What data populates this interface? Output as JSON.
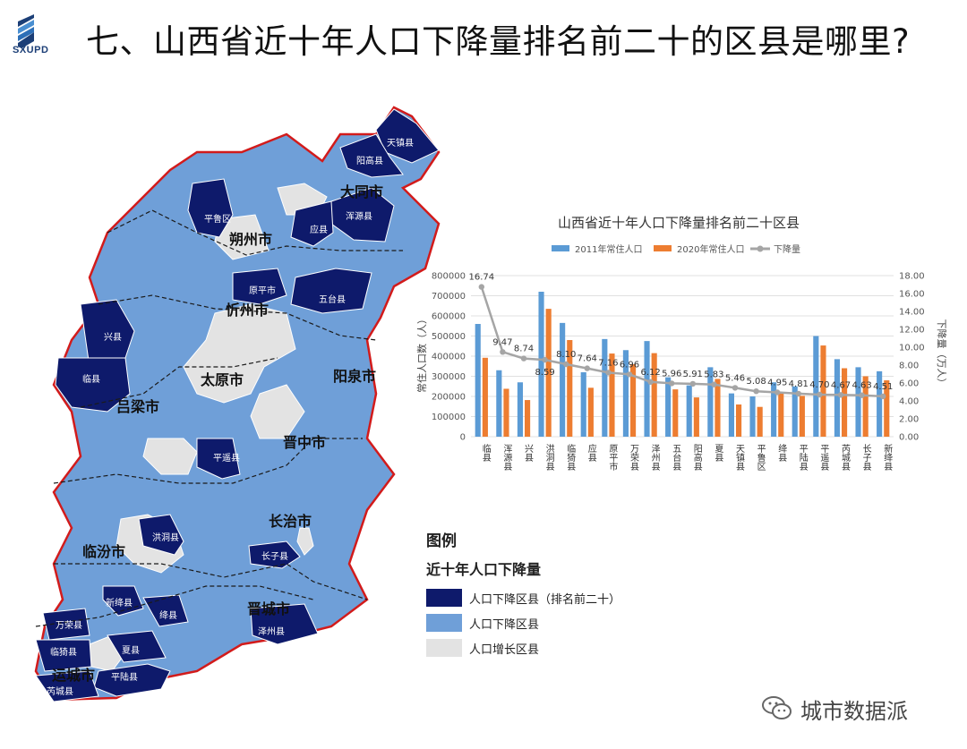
{
  "header": {
    "logo_text": "SXUPD",
    "title": "七、山西省近十年人口下降量排名前二十的区县是哪里?"
  },
  "colors": {
    "top20": "#0e1a6b",
    "decline": "#6f9fd8",
    "growth": "#e3e3e3",
    "boundary": "#d21b1b",
    "bar2011": "#5b9bd5",
    "bar2020": "#ed7d31",
    "line": "#a5a5a5"
  },
  "map": {
    "labels": {
      "datong": "大同市",
      "shuozhou": "朔州市",
      "xinzhou": "忻州市",
      "taiyuan": "太原市",
      "yangquan": "阳泉市",
      "lvliang": "吕梁市",
      "jinzhong": "晋中市",
      "changzhi": "长治市",
      "linfen": "临汾市",
      "jincheng": "晋城市",
      "yuncheng": "运城市"
    },
    "counties": {
      "tianzhen": "天镇县",
      "yanggao": "阳高县",
      "hunyuan": "浑源县",
      "yingxian": "应县",
      "pinglu": "平鲁区",
      "yuanping": "原平市",
      "wutai": "五台县",
      "xingxian": "兴县",
      "linxian": "临县",
      "pingyao": "平遥县",
      "hongdong": "洪洞县",
      "zhangzi": "长子县",
      "xinjiang": "新绛县",
      "jiangxian": "绛县",
      "zezhou": "泽州县",
      "wanrong": "万荣县",
      "linyi": "临猗县",
      "xiaxian": "夏县",
      "pinglux": "平陆县",
      "ruicheng": "芮城县"
    }
  },
  "chart_data": {
    "type": "bar",
    "title": "山西省近十年人口下降量排名前二十区县",
    "ylabel": "常住人口数（人）",
    "y2label": "下降量（万人）",
    "ylim": [
      0,
      800000
    ],
    "y2lim": [
      0,
      18
    ],
    "yticks": [
      "0",
      "100000",
      "200000",
      "300000",
      "400000",
      "500000",
      "600000",
      "700000",
      "800000"
    ],
    "y2ticks": [
      "0.00",
      "2.00",
      "4.00",
      "6.00",
      "8.00",
      "10.00",
      "12.00",
      "14.00",
      "16.00",
      "18.00"
    ],
    "legend_position": "top",
    "categories": [
      "临县",
      "浑源县",
      "兴县",
      "洪洞县",
      "临猗县",
      "应县",
      "原平市",
      "万荣县",
      "泽州县",
      "五台县",
      "阳高县",
      "夏县",
      "天镇县",
      "平鲁区",
      "绛县",
      "平陆县",
      "平遥县",
      "芮城县",
      "长子县",
      "新绛县"
    ],
    "series": [
      {
        "name": "2011年常住人口",
        "values": [
          560000,
          330000,
          270000,
          720000,
          565000,
          320000,
          485000,
          430000,
          475000,
          295000,
          255000,
          345000,
          215000,
          200000,
          270000,
          250000,
          500000,
          385000,
          345000,
          325000
        ]
      },
      {
        "name": "2020年常住人口",
        "values": [
          392000,
          238000,
          182000,
          635000,
          480000,
          243000,
          413000,
          360000,
          415000,
          235000,
          195000,
          287000,
          160000,
          148000,
          220000,
          203000,
          453000,
          340000,
          300000,
          280000
        ]
      },
      {
        "name": "下降量",
        "axis": "right",
        "values": [
          16.74,
          9.47,
          8.74,
          8.59,
          8.1,
          7.64,
          7.16,
          6.96,
          6.12,
          5.96,
          5.91,
          5.83,
          5.46,
          5.08,
          4.95,
          4.81,
          4.7,
          4.67,
          4.63,
          4.51
        ]
      }
    ],
    "data_labels": [
      "16.74",
      "9.47",
      "8.74",
      "8.59",
      "8.10",
      "7.64",
      "7.16",
      "6.96",
      "6.12",
      "5.96",
      "5.91",
      "5.83",
      "5.46",
      "5.08",
      "4.95",
      "4.81",
      "4.70",
      "4.67",
      "4.63",
      "4.51"
    ]
  },
  "legend": {
    "title": "图例",
    "subtitle": "近十年人口下降量",
    "items": [
      {
        "label": "人口下降区县（排名前二十）",
        "color": "#0e1a6b"
      },
      {
        "label": "人口下降区县",
        "color": "#6f9fd8"
      },
      {
        "label": "人口增长区县",
        "color": "#e3e3e3"
      }
    ]
  },
  "watermark": {
    "text": "城市数据派"
  }
}
